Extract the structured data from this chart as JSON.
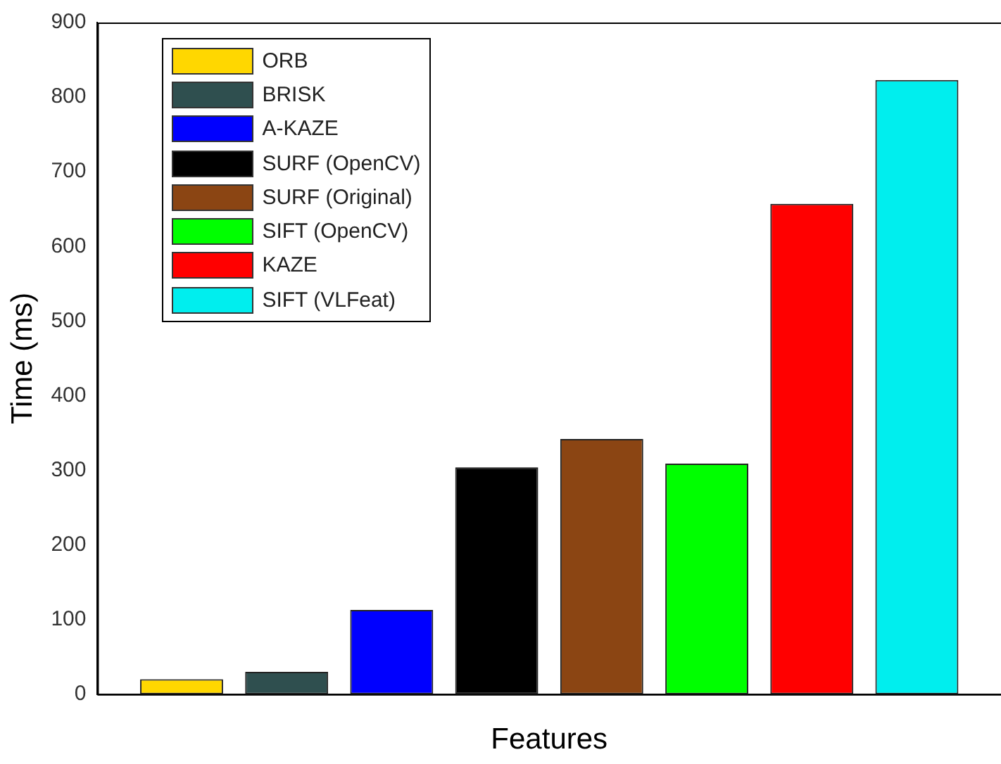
{
  "chart_data": {
    "type": "bar",
    "xlabel": "Features",
    "ylabel": "Time (ms)",
    "categories": [
      null
    ],
    "series": [
      {
        "name": "ORB",
        "color": "#ffd700",
        "values": [
          20
        ]
      },
      {
        "name": "BRISK",
        "color": "#2f4f4f",
        "values": [
          30
        ]
      },
      {
        "name": "A-KAZE",
        "color": "#0000ff",
        "values": [
          113
        ]
      },
      {
        "name": "SURF (OpenCV)",
        "color": "#000000",
        "values": [
          304
        ]
      },
      {
        "name": "SURF (Original)",
        "color": "#8b4513",
        "values": [
          342
        ]
      },
      {
        "name": "SIFT (OpenCV)",
        "color": "#00ff00",
        "values": [
          309
        ]
      },
      {
        "name": "KAZE",
        "color": "#ff0000",
        "values": [
          657
        ]
      },
      {
        "name": "SIFT (VLFeat)",
        "color": "#00eeee",
        "values": [
          823
        ]
      }
    ],
    "ylim": [
      0,
      900
    ],
    "yticks": [
      0,
      100,
      200,
      300,
      400,
      500,
      600,
      700,
      800,
      900
    ],
    "grid": false,
    "legend": "top left"
  }
}
